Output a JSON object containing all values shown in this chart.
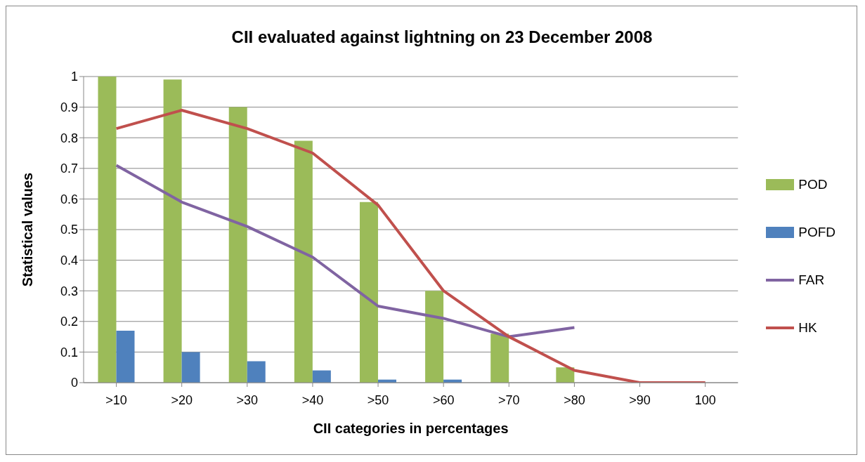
{
  "chart_data": {
    "type": "bar",
    "title": "CII evaluated against  lightning on 23 December 2008",
    "xlabel": "CII categories in percentages",
    "ylabel": "Statistical values",
    "categories": [
      ">10",
      ">20",
      ">30",
      ">40",
      ">50",
      ">60",
      ">70",
      ">80",
      ">90",
      "100"
    ],
    "series": [
      {
        "name": "POD",
        "color": "#9bbb59",
        "values": [
          1,
          0.99,
          0.9,
          0.79,
          0.59,
          0.3,
          0.16,
          0.05,
          0,
          0
        ]
      },
      {
        "name": "POFD",
        "color": "#4f81bd",
        "values": [
          0.17,
          0.1,
          0.07,
          0.04,
          0.01,
          0.01,
          0,
          0,
          0,
          0
        ]
      },
      {
        "name": "FAR",
        "type": "line",
        "color": "#8064a2",
        "values": [
          0.71,
          0.59,
          0.51,
          0.41,
          0.25,
          0.21,
          0.15,
          0.18,
          null,
          null
        ]
      },
      {
        "name": "HK",
        "type": "line",
        "color": "#c0504d",
        "values": [
          0.83,
          0.89,
          0.83,
          0.75,
          0.58,
          0.3,
          0.15,
          0.04,
          0,
          0
        ]
      }
    ],
    "ylim": [
      0,
      1
    ],
    "yticks": [
      0,
      0.1,
      0.2,
      0.3,
      0.4,
      0.5,
      0.6,
      0.7,
      0.8,
      0.9,
      1
    ],
    "grid": "y",
    "legend": "right",
    "marker": "none"
  }
}
